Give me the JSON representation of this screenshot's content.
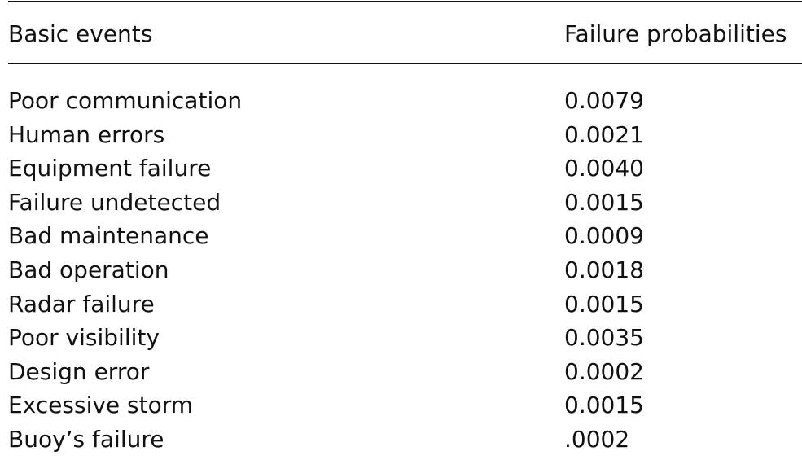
{
  "table": {
    "header": [
      "Basic events",
      "Failure probabilities"
    ],
    "rows": [
      [
        "Poor communication",
        "0.0079"
      ],
      [
        "Human errors",
        "0.0021"
      ],
      [
        "Equipment failure",
        "0.0040"
      ],
      [
        "Failure undetected",
        "0.0015"
      ],
      [
        "Bad maintenance",
        "0.0009"
      ],
      [
        "Bad operation",
        "0.0018"
      ],
      [
        "Radar failure",
        "0.0015"
      ],
      [
        "Poor visibility",
        "0.0035"
      ],
      [
        "Design error",
        "0.0002"
      ],
      [
        "Excessive storm",
        "0.0015"
      ],
      [
        "Buoy’s failure",
        ".0002"
      ]
    ]
  }
}
